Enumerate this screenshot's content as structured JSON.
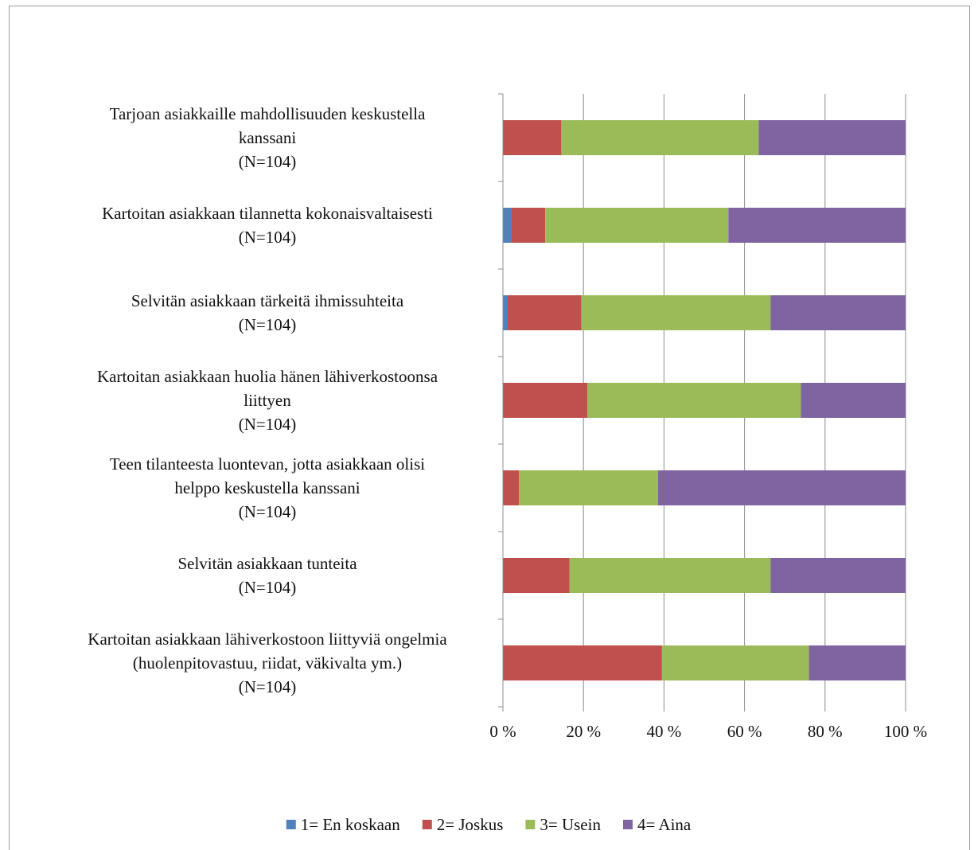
{
  "chart_data": {
    "type": "bar",
    "orientation": "horizontal",
    "stacked": "percent",
    "categories": [
      [
        "Tarjoan asiakkaille mahdollisuuden keskustella",
        "kanssani",
        "(N=104)"
      ],
      [
        "Kartoitan asiakkaan tilannetta kokonaisvaltaisesti",
        "(N=104)"
      ],
      [
        "Selvitän asiakkaan tärkeitä ihmissuhteita",
        "(N=104)"
      ],
      [
        "Kartoitan asiakkaan huolia hänen lähiverkostoonsa",
        "liittyen",
        "(N=104)"
      ],
      [
        "Teen tilanteesta luontevan, jotta asiakkaan olisi",
        "helppo keskustella kanssani",
        "(N=104)"
      ],
      [
        "Selvitän asiakkaan tunteita",
        "(N=104)"
      ],
      [
        "Kartoitan asiakkaan lähiverkostoon liittyviä ongelmia",
        "(huolenpitovastuu, riidat, väkivalta ym.)",
        "(N=104)"
      ]
    ],
    "series": [
      {
        "name": "1= En koskaan",
        "color": "#4F81BD",
        "values": [
          0,
          2,
          1,
          0,
          0,
          0,
          0
        ]
      },
      {
        "name": "2= Joskus",
        "color": "#C0504D",
        "values": [
          14.5,
          8.5,
          18.5,
          21,
          4,
          16.5,
          39.5
        ]
      },
      {
        "name": "3= Usein",
        "color": "#9BBB59",
        "values": [
          49,
          45.5,
          47,
          53,
          34.5,
          50,
          36.5
        ]
      },
      {
        "name": "4= Aina",
        "color": "#8064A2",
        "values": [
          36.5,
          44,
          33.5,
          26,
          61.5,
          33.5,
          24
        ]
      }
    ],
    "xlim": [
      0,
      100
    ],
    "xticks": [
      "0 %",
      "20 %",
      "40 %",
      "60 %",
      "80 %",
      "100 %"
    ],
    "grid": true,
    "legend_position": "bottom"
  }
}
